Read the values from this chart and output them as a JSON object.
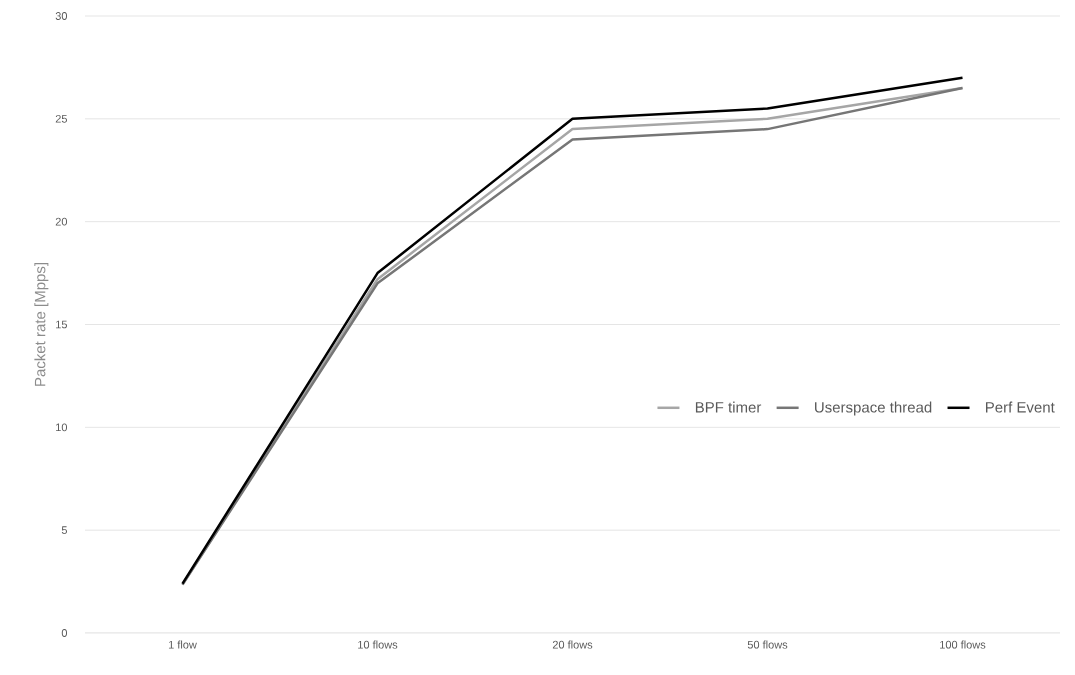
{
  "chart_data": {
    "type": "line",
    "ylabel": "Packet rate [Mpps]",
    "categories": [
      "1 flow",
      "10 flows",
      "20 flows",
      "50 flows",
      "100 flows"
    ],
    "series": [
      {
        "name": "BPF timer",
        "color": "#a6a6a6",
        "values": [
          2.35,
          17.2,
          24.5,
          25.0,
          26.5
        ]
      },
      {
        "name": "Userspace thread",
        "color": "#767676",
        "values": [
          2.35,
          17.0,
          24.0,
          24.5,
          26.5
        ]
      },
      {
        "name": "Perf Event",
        "color": "#000000",
        "values": [
          2.4,
          17.5,
          25.0,
          25.5,
          27.0
        ]
      }
    ],
    "ylim": [
      0,
      30
    ],
    "yticks": [
      0,
      5,
      10,
      15,
      20,
      25,
      30
    ],
    "grid": "y",
    "legend": "right"
  }
}
